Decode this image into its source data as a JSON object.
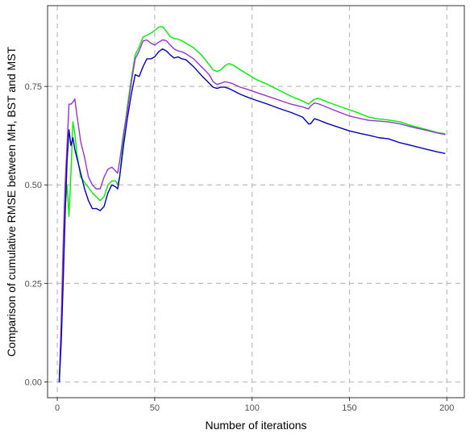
{
  "chart_data": {
    "type": "line",
    "title": "",
    "xlabel": "Number of iterations",
    "ylabel": "Comparison of cumulative RMSE between MH, BST and MST",
    "xlim": [
      -5,
      209
    ],
    "ylim": [
      -0.04,
      0.955
    ],
    "xticks": [
      0,
      50,
      100,
      150,
      200
    ],
    "yticks": [
      0.0,
      0.25,
      0.5,
      0.75
    ],
    "xtick_labels": [
      "0",
      "50",
      "100",
      "150",
      "200"
    ],
    "ytick_labels": [
      "0.00",
      "0.25",
      "0.50",
      "0.75"
    ],
    "grid": true,
    "legend": "none",
    "series": [
      {
        "color": "#00ee00",
        "points": [
          [
            1,
            0
          ],
          [
            2,
            0.12
          ],
          [
            3,
            0.28
          ],
          [
            4,
            0.44
          ],
          [
            5,
            0.5
          ],
          [
            6,
            0.42
          ],
          [
            7,
            0.53
          ],
          [
            8,
            0.66
          ],
          [
            9,
            0.63
          ],
          [
            10,
            0.58
          ],
          [
            12,
            0.52
          ],
          [
            15,
            0.5
          ],
          [
            18,
            0.48
          ],
          [
            20,
            0.47
          ],
          [
            22,
            0.46
          ],
          [
            24,
            0.47
          ],
          [
            26,
            0.5
          ],
          [
            28,
            0.51
          ],
          [
            30,
            0.51
          ],
          [
            31,
            0.5
          ],
          [
            32,
            0.52
          ],
          [
            34,
            0.62
          ],
          [
            36,
            0.7
          ],
          [
            38,
            0.77
          ],
          [
            40,
            0.83
          ],
          [
            42,
            0.85
          ],
          [
            44,
            0.875
          ],
          [
            46,
            0.88
          ],
          [
            48,
            0.885
          ],
          [
            50,
            0.892
          ],
          [
            52,
            0.9
          ],
          [
            54,
            0.902
          ],
          [
            56,
            0.89
          ],
          [
            58,
            0.876
          ],
          [
            60,
            0.872
          ],
          [
            62,
            0.87
          ],
          [
            64,
            0.866
          ],
          [
            66,
            0.86
          ],
          [
            70,
            0.848
          ],
          [
            74,
            0.83
          ],
          [
            78,
            0.805
          ],
          [
            80,
            0.792
          ],
          [
            82,
            0.788
          ],
          [
            84,
            0.792
          ],
          [
            86,
            0.802
          ],
          [
            88,
            0.808
          ],
          [
            90,
            0.805
          ],
          [
            94,
            0.792
          ],
          [
            98,
            0.78
          ],
          [
            102,
            0.768
          ],
          [
            108,
            0.755
          ],
          [
            114,
            0.74
          ],
          [
            120,
            0.725
          ],
          [
            126,
            0.713
          ],
          [
            129,
            0.705
          ],
          [
            130,
            0.71
          ],
          [
            132,
            0.717
          ],
          [
            134,
            0.72
          ],
          [
            136,
            0.716
          ],
          [
            140,
            0.708
          ],
          [
            148,
            0.694
          ],
          [
            155,
            0.682
          ],
          [
            160,
            0.672
          ],
          [
            164,
            0.668
          ],
          [
            170,
            0.665
          ],
          [
            176,
            0.66
          ],
          [
            182,
            0.65
          ],
          [
            190,
            0.64
          ],
          [
            195,
            0.633
          ],
          [
            199,
            0.63
          ]
        ]
      },
      {
        "color": "#9933cc",
        "points": [
          [
            1,
            0
          ],
          [
            2,
            0.15
          ],
          [
            3,
            0.35
          ],
          [
            4,
            0.5
          ],
          [
            5,
            0.6
          ],
          [
            6,
            0.705
          ],
          [
            7,
            0.705
          ],
          [
            8,
            0.71
          ],
          [
            9,
            0.718
          ],
          [
            10,
            0.68
          ],
          [
            12,
            0.61
          ],
          [
            14,
            0.57
          ],
          [
            16,
            0.52
          ],
          [
            18,
            0.5
          ],
          [
            20,
            0.49
          ],
          [
            22,
            0.49
          ],
          [
            24,
            0.52
          ],
          [
            26,
            0.54
          ],
          [
            28,
            0.545
          ],
          [
            30,
            0.535
          ],
          [
            31,
            0.53
          ],
          [
            32,
            0.56
          ],
          [
            34,
            0.63
          ],
          [
            36,
            0.69
          ],
          [
            38,
            0.76
          ],
          [
            40,
            0.82
          ],
          [
            42,
            0.84
          ],
          [
            44,
            0.865
          ],
          [
            46,
            0.868
          ],
          [
            48,
            0.86
          ],
          [
            50,
            0.855
          ],
          [
            52,
            0.862
          ],
          [
            54,
            0.868
          ],
          [
            56,
            0.866
          ],
          [
            58,
            0.855
          ],
          [
            60,
            0.845
          ],
          [
            62,
            0.84
          ],
          [
            64,
            0.838
          ],
          [
            66,
            0.833
          ],
          [
            70,
            0.82
          ],
          [
            74,
            0.8
          ],
          [
            78,
            0.78
          ],
          [
            80,
            0.762
          ],
          [
            82,
            0.755
          ],
          [
            84,
            0.758
          ],
          [
            86,
            0.762
          ],
          [
            88,
            0.76
          ],
          [
            90,
            0.757
          ],
          [
            94,
            0.748
          ],
          [
            98,
            0.742
          ],
          [
            102,
            0.735
          ],
          [
            108,
            0.725
          ],
          [
            114,
            0.715
          ],
          [
            120,
            0.705
          ],
          [
            126,
            0.698
          ],
          [
            129,
            0.693
          ],
          [
            130,
            0.7
          ],
          [
            132,
            0.708
          ],
          [
            134,
            0.706
          ],
          [
            138,
            0.698
          ],
          [
            144,
            0.686
          ],
          [
            150,
            0.675
          ],
          [
            156,
            0.668
          ],
          [
            160,
            0.664
          ],
          [
            165,
            0.662
          ],
          [
            170,
            0.66
          ],
          [
            176,
            0.655
          ],
          [
            182,
            0.647
          ],
          [
            190,
            0.638
          ],
          [
            195,
            0.632
          ],
          [
            199,
            0.628
          ]
        ]
      },
      {
        "color": "#0000bb",
        "points": [
          [
            1,
            0
          ],
          [
            2,
            0.1
          ],
          [
            3,
            0.25
          ],
          [
            4,
            0.42
          ],
          [
            5,
            0.56
          ],
          [
            6,
            0.64
          ],
          [
            7,
            0.6
          ],
          [
            8,
            0.62
          ],
          [
            9,
            0.59
          ],
          [
            10,
            0.57
          ],
          [
            12,
            0.53
          ],
          [
            14,
            0.49
          ],
          [
            16,
            0.46
          ],
          [
            18,
            0.44
          ],
          [
            20,
            0.44
          ],
          [
            22,
            0.435
          ],
          [
            24,
            0.445
          ],
          [
            26,
            0.48
          ],
          [
            28,
            0.5
          ],
          [
            30,
            0.495
          ],
          [
            31,
            0.49
          ],
          [
            32,
            0.52
          ],
          [
            34,
            0.6
          ],
          [
            36,
            0.67
          ],
          [
            38,
            0.73
          ],
          [
            40,
            0.78
          ],
          [
            42,
            0.775
          ],
          [
            44,
            0.8
          ],
          [
            46,
            0.82
          ],
          [
            48,
            0.82
          ],
          [
            50,
            0.825
          ],
          [
            52,
            0.838
          ],
          [
            54,
            0.845
          ],
          [
            56,
            0.84
          ],
          [
            58,
            0.83
          ],
          [
            60,
            0.822
          ],
          [
            62,
            0.825
          ],
          [
            64,
            0.82
          ],
          [
            66,
            0.818
          ],
          [
            70,
            0.8
          ],
          [
            74,
            0.778
          ],
          [
            78,
            0.758
          ],
          [
            80,
            0.748
          ],
          [
            82,
            0.745
          ],
          [
            84,
            0.748
          ],
          [
            86,
            0.748
          ],
          [
            88,
            0.745
          ],
          [
            90,
            0.74
          ],
          [
            94,
            0.73
          ],
          [
            98,
            0.722
          ],
          [
            102,
            0.715
          ],
          [
            108,
            0.705
          ],
          [
            114,
            0.694
          ],
          [
            120,
            0.684
          ],
          [
            126,
            0.672
          ],
          [
            129,
            0.655
          ],
          [
            130,
            0.655
          ],
          [
            132,
            0.668
          ],
          [
            134,
            0.665
          ],
          [
            138,
            0.657
          ],
          [
            144,
            0.647
          ],
          [
            150,
            0.637
          ],
          [
            156,
            0.63
          ],
          [
            160,
            0.626
          ],
          [
            165,
            0.62
          ],
          [
            170,
            0.617
          ],
          [
            176,
            0.607
          ],
          [
            182,
            0.6
          ],
          [
            190,
            0.59
          ],
          [
            195,
            0.584
          ],
          [
            199,
            0.58
          ]
        ]
      }
    ]
  }
}
